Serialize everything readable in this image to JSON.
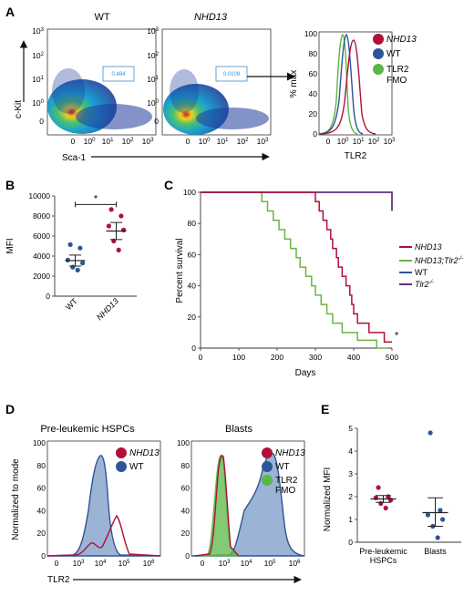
{
  "panels": {
    "A": {
      "letter": "A",
      "flow_left_title": "WT",
      "flow_mid_title": "NHD13",
      "flow_left_gate": "0.484",
      "flow_mid_gate": "0.0109",
      "flow_ylabel": "c-Kit",
      "flow_xlabel": "Sca-1",
      "hist_ylabel": "% max",
      "hist_xlabel": "TLR2",
      "hist_yticks": [
        "100",
        "80",
        "60",
        "40",
        "20",
        "0"
      ],
      "legend": [
        {
          "label": "NHD13",
          "color": "#b0103a",
          "italic": true
        },
        {
          "label": "WT",
          "color": "#2e5597",
          "italic": false
        },
        {
          "label": "TLR2",
          "label2": "FMO",
          "color": "#5bb746",
          "italic": false
        }
      ]
    },
    "B": {
      "letter": "B",
      "ylabel": "MFI",
      "sig": "*"
    },
    "C": {
      "letter": "C",
      "ylabel": "Percent survival",
      "xlabel": "Days",
      "sig": "*",
      "legend": [
        {
          "label": "NHD13",
          "color": "#b0103a"
        },
        {
          "label": "NHD13;Tlr2",
          "sup": "-/-",
          "color": "#6ab543"
        },
        {
          "label": "WT",
          "color": "#2e5597"
        },
        {
          "label": "Tlr2",
          "sup": "-/-",
          "color": "#6b2a7c"
        }
      ]
    },
    "D": {
      "letter": "D",
      "ylabel": "Normalized to mode",
      "xlabel": "TLR2",
      "left_title": "Pre-leukemic HSPCs",
      "right_title": "Blasts",
      "yticks": [
        "100",
        "80",
        "60",
        "40",
        "20",
        "0"
      ],
      "left_legend": [
        {
          "label": "NHD13",
          "color": "#b0103a",
          "italic": true
        },
        {
          "label": "WT",
          "color": "#2e5597",
          "italic": false
        }
      ],
      "right_legend": [
        {
          "label": "NHD13",
          "color": "#b0103a",
          "italic": true
        },
        {
          "label": "WT",
          "color": "#2e5597",
          "italic": false
        },
        {
          "label": "TLR2",
          "label2": "FMO",
          "color": "#5bb746",
          "italic": false
        }
      ]
    },
    "E": {
      "letter": "E",
      "ylabel": "Normalized MFI"
    }
  },
  "chart_data": [
    {
      "panel": "B",
      "type": "scatter",
      "categories": [
        "WT",
        "NHD13"
      ],
      "ylim": [
        0,
        10000
      ],
      "yticks": [
        0,
        2000,
        4000,
        6000,
        8000,
        10000
      ],
      "ylabel": "MFI",
      "series": [
        {
          "category": "WT",
          "color": "#2e5597",
          "mean": 3550,
          "sem_low": 3000,
          "sem_high": 4100,
          "values": [
            5150,
            4800,
            3600,
            3300,
            2900,
            2600
          ]
        },
        {
          "category": "NHD13",
          "color": "#b0103a",
          "mean": 6500,
          "sem_low": 5650,
          "sem_high": 7350,
          "values": [
            8650,
            8000,
            7000,
            6600,
            5500,
            4600
          ]
        }
      ]
    },
    {
      "panel": "C",
      "type": "line",
      "xlabel": "Days",
      "ylabel": "Percent survival",
      "xlim": [
        0,
        500
      ],
      "ylim": [
        0,
        100
      ],
      "xticks": [
        0,
        100,
        200,
        300,
        400,
        500
      ],
      "yticks": [
        0,
        20,
        40,
        60,
        80,
        100
      ],
      "series": [
        {
          "name": "NHD13",
          "color": "#b0103a",
          "points": [
            [
              0,
              100
            ],
            [
              300,
              100
            ],
            [
              300,
              94
            ],
            [
              310,
              94
            ],
            [
              310,
              88
            ],
            [
              320,
              88
            ],
            [
              320,
              82
            ],
            [
              330,
              82
            ],
            [
              330,
              76
            ],
            [
              340,
              76
            ],
            [
              340,
              70
            ],
            [
              345,
              70
            ],
            [
              345,
              64
            ],
            [
              355,
              64
            ],
            [
              355,
              58
            ],
            [
              360,
              58
            ],
            [
              360,
              52
            ],
            [
              370,
              52
            ],
            [
              370,
              46
            ],
            [
              380,
              46
            ],
            [
              380,
              40
            ],
            [
              390,
              40
            ],
            [
              390,
              34
            ],
            [
              395,
              34
            ],
            [
              395,
              28
            ],
            [
              400,
              28
            ],
            [
              400,
              22
            ],
            [
              410,
              22
            ],
            [
              410,
              16
            ],
            [
              440,
              16
            ],
            [
              440,
              10
            ],
            [
              480,
              10
            ],
            [
              480,
              4
            ],
            [
              500,
              4
            ]
          ]
        },
        {
          "name": "NHD13;Tlr2-/-",
          "color": "#6ab543",
          "points": [
            [
              0,
              100
            ],
            [
              160,
              100
            ],
            [
              160,
              94
            ],
            [
              175,
              94
            ],
            [
              175,
              88
            ],
            [
              190,
              88
            ],
            [
              190,
              82
            ],
            [
              205,
              82
            ],
            [
              205,
              76
            ],
            [
              220,
              76
            ],
            [
              220,
              70
            ],
            [
              235,
              70
            ],
            [
              235,
              64
            ],
            [
              250,
              64
            ],
            [
              250,
              58
            ],
            [
              260,
              58
            ],
            [
              260,
              52
            ],
            [
              275,
              52
            ],
            [
              275,
              46
            ],
            [
              290,
              46
            ],
            [
              290,
              40
            ],
            [
              300,
              40
            ],
            [
              300,
              34
            ],
            [
              315,
              34
            ],
            [
              315,
              28
            ],
            [
              330,
              28
            ],
            [
              330,
              22
            ],
            [
              345,
              22
            ],
            [
              345,
              16
            ],
            [
              370,
              16
            ],
            [
              370,
              10
            ],
            [
              410,
              10
            ],
            [
              410,
              5
            ],
            [
              460,
              5
            ],
            [
              460,
              0
            ],
            [
              490,
              0
            ]
          ]
        },
        {
          "name": "WT",
          "color": "#2e5597",
          "points": [
            [
              0,
              100
            ],
            [
              500,
              100
            ],
            [
              500,
              88
            ]
          ]
        },
        {
          "name": "Tlr2-/-",
          "color": "#6b2a7c",
          "points": [
            [
              0,
              100
            ],
            [
              500,
              100
            ],
            [
              500,
              88
            ]
          ]
        }
      ]
    },
    {
      "panel": "E",
      "type": "scatter",
      "categories": [
        "Pre-leukemic HSPCs",
        "Blasts"
      ],
      "ylim": [
        0,
        5
      ],
      "yticks": [
        0,
        1,
        2,
        3,
        4,
        5
      ],
      "ylabel": "Normalized MFI",
      "series": [
        {
          "category": "Pre-leukemic HSPCs",
          "color": "#b0103a",
          "mean": 1.9,
          "sem_low": 1.75,
          "sem_high": 2.05,
          "values": [
            2.4,
            2.0,
            1.95,
            1.85,
            1.7,
            1.5
          ]
        },
        {
          "category": "Blasts",
          "color": "#2e5597",
          "mean": 1.3,
          "sem_low": 0.7,
          "sem_high": 1.95,
          "values": [
            4.8,
            1.4,
            1.2,
            1.0,
            0.7,
            0.2
          ]
        }
      ]
    },
    {
      "panel": "A-flow",
      "type": "scatter",
      "xlabel": "Sca-1",
      "ylabel": "c-Kit",
      "xticks": [
        "0",
        "10^0",
        "10^1",
        "10^2",
        "10^3"
      ],
      "yticks": [
        "10^3",
        "10^2",
        "10^1",
        "10^0",
        "0"
      ]
    },
    {
      "panel": "A-hist",
      "type": "line",
      "xlabel": "TLR2",
      "ylabel": "% max",
      "xticks": [
        "0",
        "10^0",
        "10^1",
        "10^2",
        "10^3"
      ],
      "ylim": [
        0,
        100
      ]
    },
    {
      "panel": "D",
      "type": "area",
      "xlabel": "TLR2",
      "ylabel": "Normalized to mode",
      "xticks": [
        "0",
        "10^3",
        "10^4",
        "10^5",
        "10^6"
      ],
      "ylim": [
        0,
        100
      ]
    }
  ]
}
